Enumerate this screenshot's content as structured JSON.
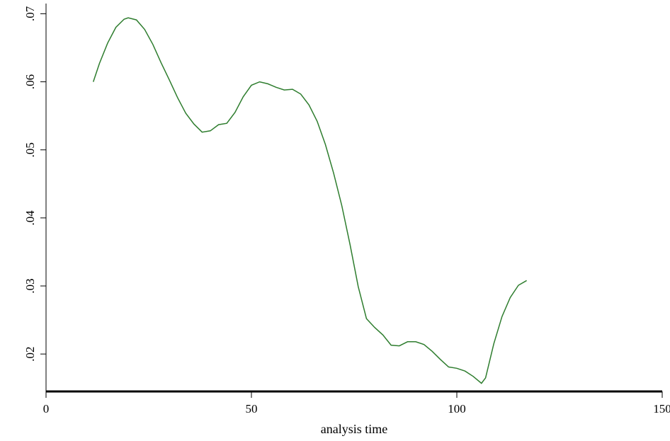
{
  "chart_data": {
    "type": "line",
    "title": "",
    "xlabel": "analysis time",
    "ylabel": "",
    "xlim": [
      0,
      150
    ],
    "ylim": [
      0.0145,
      0.0715
    ],
    "x_ticks": [
      0,
      50,
      100,
      150
    ],
    "x_tick_labels": [
      "0",
      "50",
      "100",
      "150"
    ],
    "y_ticks": [
      0.02,
      0.03,
      0.04,
      0.05,
      0.06,
      0.07
    ],
    "y_tick_labels": [
      ".02",
      ".03",
      ".04",
      ".05",
      ".06",
      ".07"
    ],
    "grid": false,
    "legend": "none",
    "colors": {
      "line": "#2e7d2e",
      "axis": "#000000",
      "background": "#ffffff"
    },
    "series": [
      {
        "x": [
          11.5,
          13,
          15,
          17,
          19,
          20,
          22,
          24,
          26,
          28,
          30,
          32,
          34,
          36,
          38,
          40,
          42,
          44,
          46,
          48,
          50,
          52,
          54,
          56,
          58,
          60,
          62,
          64,
          66,
          68,
          70,
          72,
          74,
          76,
          78,
          80,
          82,
          84,
          86,
          88,
          90,
          92,
          94,
          96,
          98,
          100,
          102,
          104,
          106,
          107,
          109,
          111,
          113,
          115,
          117
        ],
        "y": [
          0.06,
          0.0627,
          0.0657,
          0.068,
          0.0692,
          0.0694,
          0.0691,
          0.0677,
          0.0655,
          0.0628,
          0.0603,
          0.0577,
          0.0554,
          0.0538,
          0.0526,
          0.0528,
          0.0537,
          0.0539,
          0.0555,
          0.0578,
          0.0595,
          0.06,
          0.0597,
          0.0592,
          0.0588,
          0.0589,
          0.0582,
          0.0566,
          0.0542,
          0.0508,
          0.0466,
          0.0418,
          0.0361,
          0.0299,
          0.0252,
          0.0239,
          0.0228,
          0.0213,
          0.0212,
          0.0218,
          0.0218,
          0.0214,
          0.0204,
          0.0192,
          0.0181,
          0.0179,
          0.0175,
          0.0167,
          0.0157,
          0.0165,
          0.0215,
          0.0255,
          0.0283,
          0.0301,
          0.0308
        ]
      }
    ]
  }
}
